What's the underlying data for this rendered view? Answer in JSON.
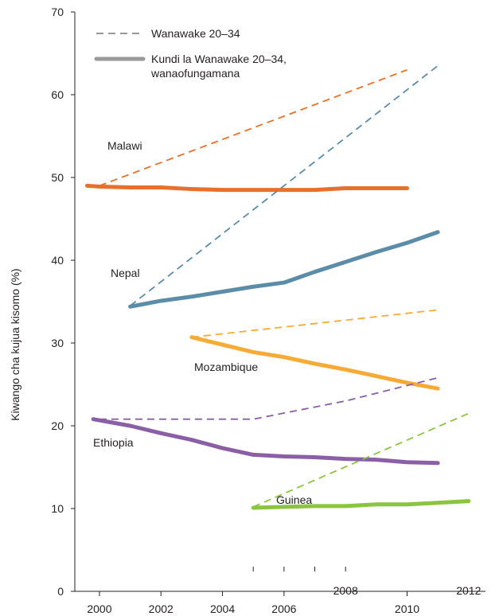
{
  "chart_data": {
    "type": "line",
    "title": "",
    "xlabel": "",
    "ylabel": "Kiwango cha kujua kisomo (%)",
    "xlim": [
      1999.2,
      2012.6
    ],
    "ylim": [
      0,
      70
    ],
    "y_ticks": [
      0,
      10,
      20,
      30,
      40,
      50,
      60,
      70
    ],
    "x_ticks": [
      2000,
      2002,
      2004,
      2006,
      2010
    ],
    "x_ticks_raised": [
      2008,
      2012
    ],
    "grid": false,
    "legend": {
      "position": "top-left",
      "entries": [
        {
          "label": "Wanawake 20–34",
          "style": "dashed",
          "color": "#999999"
        },
        {
          "label": "Kundi la Wanawake 20–34,\nwanaofungamana",
          "style": "solid",
          "color": "#9a9a9a"
        }
      ]
    },
    "countries": [
      {
        "label": "Malawi",
        "color": "#e8702a",
        "dashed_color": "#e8702a",
        "dashed": {
          "x": [
            2000,
            2010
          ],
          "y": [
            49.0,
            63.0
          ]
        },
        "solid": {
          "x": [
            1999.6,
            2000,
            2001,
            2002,
            2003,
            2004,
            2005,
            2006,
            2007,
            2008,
            2009,
            2010
          ],
          "y": [
            49.0,
            48.9,
            48.8,
            48.8,
            48.6,
            48.5,
            48.5,
            48.5,
            48.5,
            48.7,
            48.7,
            48.7
          ]
        }
      },
      {
        "label": "Nepal",
        "color": "#5b8ca8",
        "dashed_color": "#5b8ca8",
        "dashed": {
          "x": [
            2001,
            2011
          ],
          "y": [
            34.5,
            63.5
          ]
        },
        "solid": {
          "x": [
            2001,
            2002,
            2003,
            2004,
            2005,
            2006,
            2007,
            2008,
            2009,
            2010,
            2011
          ],
          "y": [
            34.4,
            35.1,
            35.6,
            36.2,
            36.8,
            37.3,
            38.6,
            39.8,
            41.0,
            42.1,
            43.4
          ]
        }
      },
      {
        "label": "Mozambique",
        "color": "#f5ab35",
        "dashed_color": "#f5ab35",
        "dashed": {
          "x": [
            2003,
            2011
          ],
          "y": [
            30.7,
            34.0
          ]
        },
        "solid": {
          "x": [
            2003,
            2004,
            2005,
            2006,
            2007,
            2008,
            2009,
            2010,
            2011
          ],
          "y": [
            30.7,
            29.8,
            28.9,
            28.3,
            27.5,
            26.8,
            26.0,
            25.2,
            24.5
          ]
        }
      },
      {
        "label": "Ethiopia",
        "color": "#8a5fa6",
        "dashed_color": "#8a5fa6",
        "dashed": {
          "x": [
            2000,
            2003,
            2005,
            2008,
            2011
          ],
          "y": [
            20.8,
            20.8,
            20.8,
            23.0,
            25.8
          ]
        },
        "solid": {
          "x": [
            1999.8,
            2001,
            2002,
            2003,
            2004,
            2005,
            2006,
            2007,
            2008,
            2009,
            2010,
            2011
          ],
          "y": [
            20.8,
            20.0,
            19.1,
            18.3,
            17.3,
            16.5,
            16.3,
            16.2,
            16.0,
            15.9,
            15.6,
            15.5
          ]
        }
      },
      {
        "label": "Guinea",
        "color": "#8bc540",
        "dashed_color": "#8bc540",
        "dashed": {
          "x": [
            2005,
            2012
          ],
          "y": [
            10.2,
            21.5
          ]
        },
        "solid": {
          "x": [
            2005,
            2006,
            2007,
            2008,
            2009,
            2010,
            2011,
            2012
          ],
          "y": [
            10.1,
            10.2,
            10.3,
            10.3,
            10.5,
            10.5,
            10.7,
            10.9
          ]
        }
      }
    ]
  }
}
